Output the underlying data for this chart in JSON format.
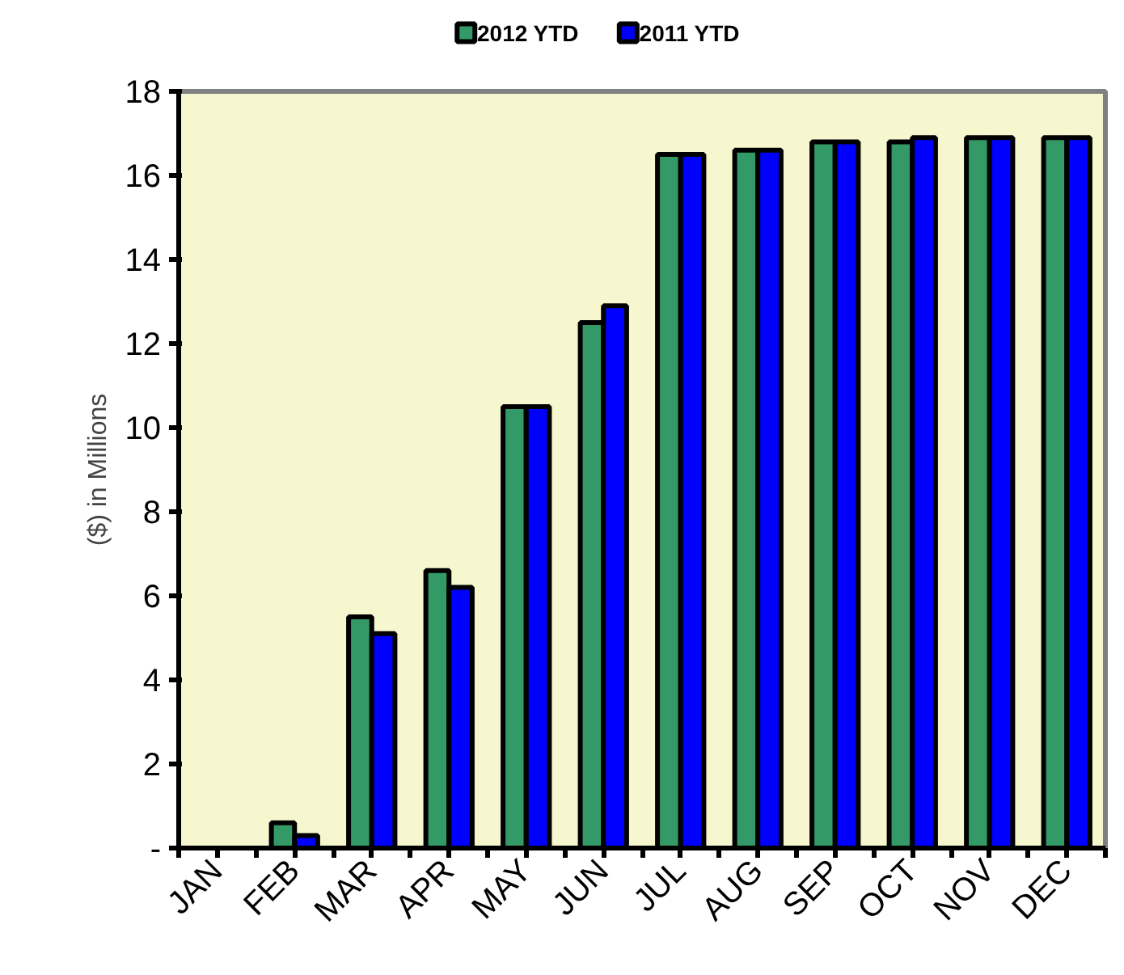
{
  "chart_data": {
    "type": "bar",
    "ylabel": "($) in Millions",
    "categories": [
      "JAN",
      "FEB",
      "MAR",
      "APR",
      "MAY",
      "JUN",
      "JUL",
      "AUG",
      "SEP",
      "OCT",
      "NOV",
      "DEC"
    ],
    "series": [
      {
        "name": "2012 YTD",
        "color": "#339966",
        "values": [
          null,
          0.6,
          5.5,
          6.6,
          10.5,
          12.5,
          16.5,
          16.6,
          16.8,
          16.8,
          16.9,
          16.9
        ]
      },
      {
        "name": "2011 YTD",
        "color": "#0000ff",
        "values": [
          null,
          0.3,
          5.1,
          6.2,
          10.5,
          12.9,
          16.5,
          16.6,
          16.8,
          16.9,
          16.9,
          16.9
        ]
      }
    ],
    "ylim": [
      0,
      18
    ],
    "yticks": [
      {
        "value": 0,
        "label": "-"
      },
      2,
      4,
      6,
      8,
      10,
      12,
      14,
      16,
      18
    ],
    "grid": false,
    "legend": "top"
  }
}
